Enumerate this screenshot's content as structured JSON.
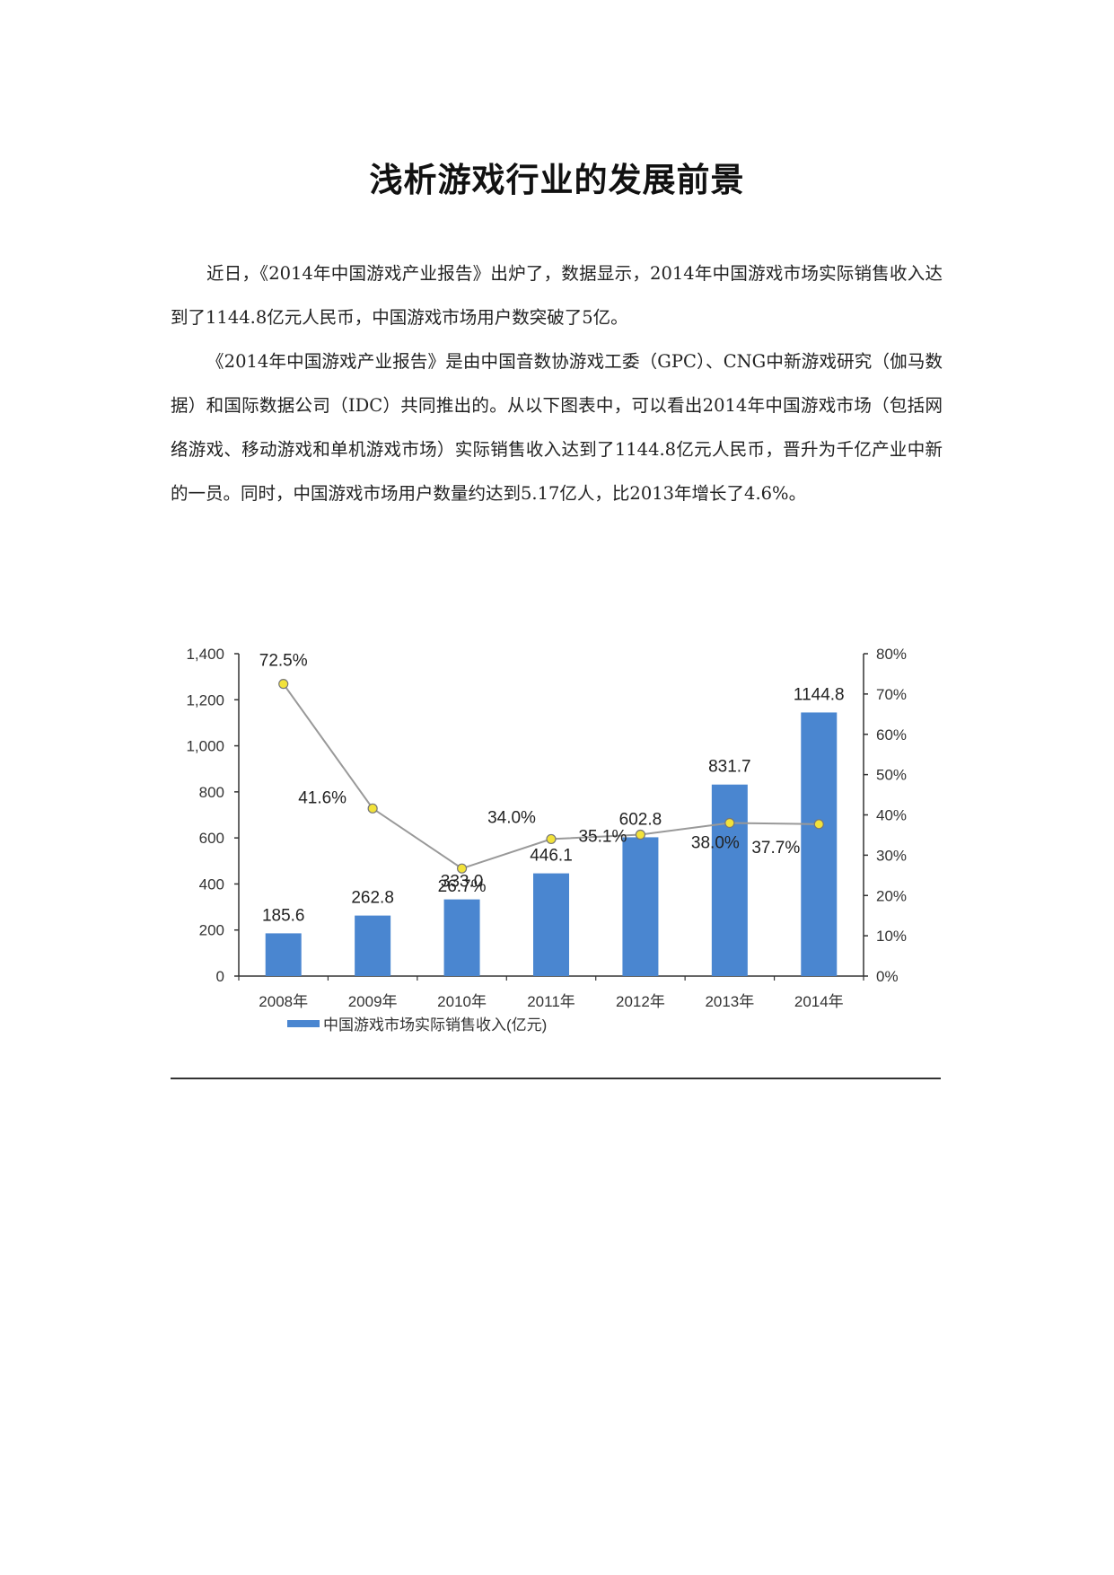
{
  "document": {
    "title": "浅析游戏行业的发展前景",
    "paragraphs": [
      "近日，《2014年中国游戏产业报告》出炉了，数据显示，2014年中国游戏市场实际销售收入达到了1144.8亿元人民币，中国游戏市场用户数突破了5亿。",
      "《2014年中国游戏产业报告》是由中国音数协游戏工委（GPC）、CNG中新游戏研究（伽马数据）和国际数据公司（IDC）共同推出的。从以下图表中，可以看出2014年中国游戏市场（包括网络游戏、移动游戏和单机游戏市场）实际销售收入达到了1144.8亿元人民币，晋升为千亿产业中新的一员。同时，中国游戏市场用户数量约达到5.17亿人，比2013年增长了4.6%。"
    ]
  },
  "chart_data": {
    "type": "bar",
    "categories": [
      "2008年",
      "2009年",
      "2010年",
      "2011年",
      "2012年",
      "2013年",
      "2014年"
    ],
    "series": [
      {
        "name": "中国游戏市场实际销售收入(亿元)",
        "type": "bar",
        "axis": "left",
        "values": [
          185.6,
          262.8,
          333.0,
          446.1,
          602.8,
          831.7,
          1144.8
        ],
        "labels": [
          "185.6",
          "262.8",
          "333.0",
          "446.1",
          "602.8",
          "831.7",
          "1144.8"
        ],
        "color": "#4a86d0"
      },
      {
        "type": "line",
        "axis": "right",
        "values": [
          72.5,
          41.6,
          26.7,
          34.0,
          35.1,
          38.0,
          37.7
        ],
        "labels": [
          "72.5%",
          "41.6%",
          "26.7%",
          "34.0%",
          "35.1%",
          "38.0%",
          "37.7%"
        ],
        "color": "#999999",
        "marker_color": "#f2e23a"
      }
    ],
    "y_left": {
      "min": 0,
      "max": 1400,
      "ticks": [
        0,
        200,
        400,
        600,
        800,
        1000,
        1200,
        1400
      ],
      "tick_labels": [
        "0",
        "200",
        "400",
        "600",
        "800",
        "1,000",
        "1,200",
        "1,400"
      ]
    },
    "y_right": {
      "min": 0,
      "max": 80,
      "ticks": [
        0,
        10,
        20,
        30,
        40,
        50,
        60,
        70,
        80
      ],
      "tick_labels": [
        "0%",
        "10%",
        "20%",
        "30%",
        "40%",
        "50%",
        "60%",
        "70%",
        "80%"
      ]
    },
    "grid": false,
    "legend": "bottom-left"
  }
}
